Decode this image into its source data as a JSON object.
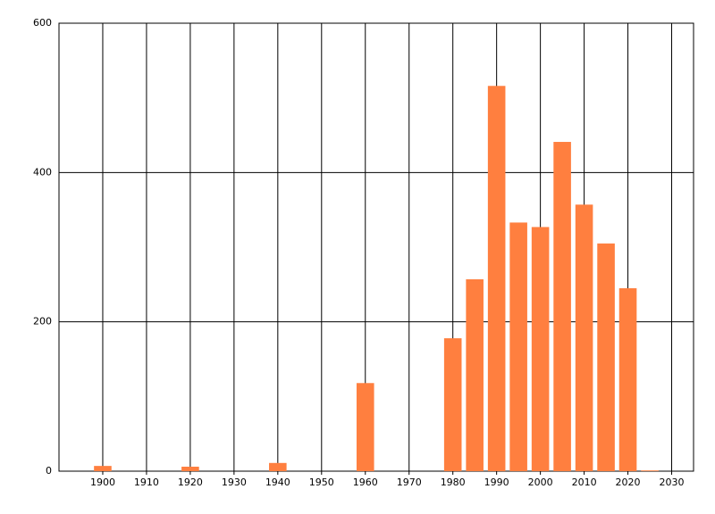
{
  "chart_data": {
    "type": "bar",
    "x": [
      1900,
      1920,
      1940,
      1960,
      1980,
      1985,
      1990,
      1995,
      2000,
      2005,
      2010,
      2015,
      2020,
      2025
    ],
    "values": [
      7,
      6,
      11,
      118,
      178,
      257,
      516,
      333,
      327,
      441,
      357,
      305,
      245,
      1
    ],
    "color": "#ff7f3f",
    "xlim": [
      1890,
      2035
    ],
    "xticks": [
      1900,
      1910,
      1920,
      1930,
      1940,
      1950,
      1960,
      1970,
      1980,
      1990,
      2000,
      2010,
      2020,
      2030
    ],
    "ylim": [
      0,
      600
    ],
    "yticks": [
      0,
      200,
      400,
      600
    ],
    "grid": true
  }
}
